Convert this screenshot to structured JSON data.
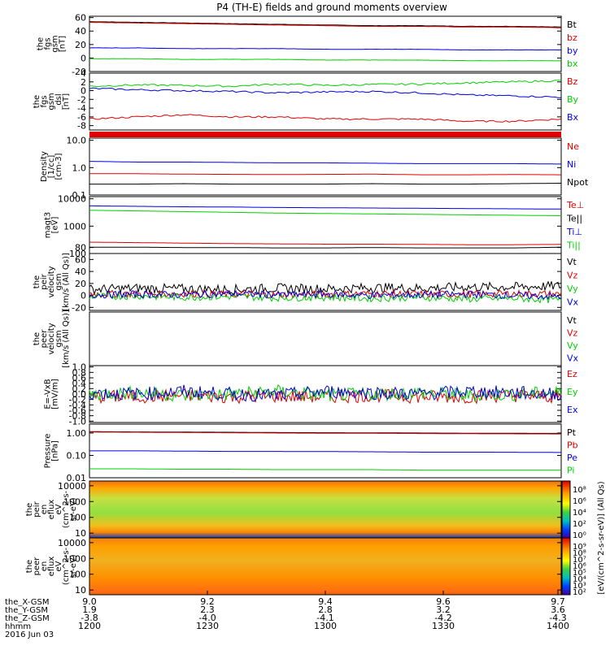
{
  "title": "P4 (TH-E) fields and ground moments overview",
  "colors": {
    "black": "#000000",
    "red": "#e00000",
    "green": "#00d000",
    "blue": "#0000e0"
  },
  "chart_data": [
    {
      "type": "line",
      "ylabel": [
        "the",
        "fgs",
        "gsm",
        "[nT]"
      ],
      "yticks": [
        "60",
        "40",
        "20",
        "0",
        "-20"
      ],
      "ylim": [
        -20,
        62
      ],
      "series": [
        {
          "name": "Bt",
          "color": "black",
          "values": [
            54,
            53,
            52,
            51,
            50,
            49,
            48,
            48,
            47,
            47,
            46
          ]
        },
        {
          "name": "bz",
          "color": "red",
          "values": [
            53,
            52,
            51,
            50,
            49,
            48,
            47,
            47,
            46,
            46,
            45
          ]
        },
        {
          "name": "by",
          "color": "blue",
          "values": [
            15,
            15,
            14,
            14,
            14,
            13,
            13,
            13,
            12,
            12,
            12
          ]
        },
        {
          "name": "bx",
          "color": "green",
          "values": [
            -1,
            -1,
            -2,
            -2,
            -2,
            -3,
            -3,
            -3,
            -4,
            -4,
            -4
          ]
        }
      ]
    },
    {
      "type": "line",
      "ylabel": [
        "the",
        "fgs",
        "gsm",
        "_dsl",
        "[nT]"
      ],
      "yticks": [
        "4",
        "2",
        "0",
        "-2",
        "-4",
        "-6",
        "-8"
      ],
      "ylim": [
        -9,
        4
      ],
      "series": [
        {
          "name": "Bz",
          "color": "red",
          "values": [
            -6.5,
            -6,
            -5.5,
            -6,
            -6,
            -6.5,
            -6.5,
            -6.5,
            -7,
            -7,
            -6.5
          ]
        },
        {
          "name": "By",
          "color": "green",
          "values": [
            1,
            1.3,
            1.2,
            1,
            1.5,
            1.2,
            1.4,
            1.5,
            1.8,
            2,
            2.3
          ]
        },
        {
          "name": "Bx",
          "color": "blue",
          "values": [
            0.5,
            0.2,
            0,
            -0.2,
            -0.5,
            -0.3,
            -0.2,
            -0.5,
            -1,
            -1.2,
            -1.5
          ]
        }
      ]
    },
    {
      "type": "line",
      "ylabel": [
        "Density",
        "[1/cc]",
        "[cm-3]"
      ],
      "yticks": [
        "10.0",
        "1.0",
        "0.1"
      ],
      "ylim": [
        0.1,
        12
      ],
      "log": true,
      "series": [
        {
          "name": "Ne",
          "color": "red",
          "values": [
            0.6,
            0.6,
            0.58,
            0.57,
            0.56,
            0.57,
            0.58,
            0.55,
            0.55,
            0.56,
            0.55
          ]
        },
        {
          "name": "Ni",
          "color": "blue",
          "values": [
            1.7,
            1.6,
            1.6,
            1.55,
            1.5,
            1.5,
            1.45,
            1.4,
            1.4,
            1.4,
            1.35
          ]
        },
        {
          "name": "Npot",
          "color": "black",
          "values": [
            0.25,
            0.25,
            0.26,
            0.25,
            0.25,
            0.25,
            0.26,
            0.25,
            0.25,
            0.26,
            0.27
          ]
        }
      ]
    },
    {
      "type": "line",
      "ylabel": [
        "magt3",
        "[eV]"
      ],
      "yticks": [
        "10000",
        "1000",
        "100"
      ],
      "ylim": [
        100,
        12000
      ],
      "log": true,
      "series": [
        {
          "name": "Te⊥",
          "color": "red",
          "values": [
            260,
            250,
            240,
            230,
            225,
            220,
            220,
            215,
            210,
            210,
            215
          ]
        },
        {
          "name": "Te||",
          "color": "black",
          "values": [
            170,
            170,
            165,
            165,
            160,
            160,
            165,
            160,
            160,
            160,
            170
          ]
        },
        {
          "name": "Ti⊥",
          "color": "blue",
          "values": [
            5500,
            5300,
            5100,
            5000,
            4800,
            4700,
            4600,
            4500,
            4400,
            4300,
            4200
          ]
        },
        {
          "name": "Ti||",
          "color": "green",
          "values": [
            3800,
            3600,
            3400,
            3200,
            3000,
            2900,
            2800,
            2700,
            2600,
            2500,
            2400
          ]
        }
      ]
    },
    {
      "type": "line",
      "ylabel": [
        "the",
        "peir",
        "velocity",
        "gsm",
        "[km/s (All Qs)]"
      ],
      "yticks": [
        "80",
        "60",
        "40",
        "20",
        "0",
        "-20"
      ],
      "ylim": [
        -25,
        70
      ],
      "series": [
        {
          "name": "Vt",
          "color": "black",
          "values": [
            10,
            12,
            11,
            10,
            12,
            11,
            13,
            12,
            14,
            14,
            16
          ]
        },
        {
          "name": "Vz",
          "color": "red",
          "values": [
            3,
            2,
            3,
            2,
            1,
            2,
            3,
            2,
            2,
            3,
            2
          ]
        },
        {
          "name": "Vy",
          "color": "green",
          "values": [
            -2,
            -1,
            -3,
            -2,
            -4,
            -3,
            -5,
            -3,
            -6,
            -5,
            -8
          ]
        },
        {
          "name": "Vx",
          "color": "blue",
          "values": [
            1,
            2,
            1,
            3,
            1,
            2,
            0,
            1,
            2,
            0,
            -2
          ]
        }
      ]
    },
    {
      "type": "line",
      "ylabel": [
        "the",
        "peer",
        "velocity",
        "gsm",
        "[km/s (All Qs)]"
      ],
      "yticks": [],
      "ylim": [
        0,
        1
      ],
      "series": [
        {
          "name": "Vt",
          "color": "black",
          "values": []
        },
        {
          "name": "Vz",
          "color": "red",
          "values": []
        },
        {
          "name": "Vy",
          "color": "green",
          "values": []
        },
        {
          "name": "Vx",
          "color": "blue",
          "values": []
        }
      ]
    },
    {
      "type": "line",
      "ylabel": [
        "E=-VxB",
        "[mV/m]"
      ],
      "yticks": [
        "1.0",
        "0.8",
        "0.6",
        "0.4",
        "0.2",
        "0.0",
        "-0.2",
        "-0.4",
        "-0.6",
        "-0.8",
        "-1.0"
      ],
      "ylim": [
        -1.05,
        1.05
      ],
      "series": [
        {
          "name": "Ez",
          "color": "red",
          "values": [
            -0.1,
            -0.1,
            -0.05,
            -0.1,
            -0.08,
            -0.1,
            -0.05,
            -0.1,
            -0.1,
            -0.05,
            -0.1
          ]
        },
        {
          "name": "Ey",
          "color": "green",
          "values": [
            0,
            0.05,
            -0.05,
            0,
            0.1,
            -0.05,
            0,
            0.05,
            -0.05,
            0,
            0.05
          ]
        },
        {
          "name": "Ex",
          "color": "blue",
          "values": [
            0.05,
            0,
            0.1,
            0,
            -0.05,
            0.1,
            0.05,
            0,
            0.1,
            0.05,
            0
          ]
        }
      ]
    },
    {
      "type": "line",
      "ylabel": [
        "Pressure",
        "[nPa]"
      ],
      "yticks": [
        "1.00",
        "0.10",
        "0.01"
      ],
      "ylim": [
        0.01,
        2.5
      ],
      "log": true,
      "series": [
        {
          "name": "Pt",
          "color": "black",
          "values": [
            1.15,
            1.12,
            1.1,
            1.08,
            1.05,
            1.03,
            1.02,
            1,
            0.98,
            0.97,
            0.96
          ]
        },
        {
          "name": "Pb",
          "color": "red",
          "values": [
            1.1,
            1.08,
            1.05,
            1.03,
            1.0,
            0.98,
            0.97,
            0.95,
            0.93,
            0.92,
            0.91
          ]
        },
        {
          "name": "Pe",
          "color": "blue",
          "values": [
            0.16,
            0.16,
            0.155,
            0.15,
            0.15,
            0.148,
            0.145,
            0.14,
            0.14,
            0.138,
            0.135
          ]
        },
        {
          "name": "Pi",
          "color": "green",
          "values": [
            0.025,
            0.025,
            0.024,
            0.024,
            0.023,
            0.023,
            0.023,
            0.022,
            0.022,
            0.022,
            0.022
          ]
        }
      ]
    },
    {
      "type": "heatmap",
      "ylabel": [
        "the",
        "peir",
        "en",
        "eflux",
        "eV",
        "(cm^2-s-",
        "sr-eV)"
      ],
      "yticks": [
        "10000",
        "1000",
        "100",
        "10"
      ],
      "ylim": [
        5,
        20000
      ],
      "log": true,
      "zlabel": "[eV/(cm^2-s-sr-eV)] (All Qs)",
      "zticks": [
        "10⁸",
        "10⁶",
        "10⁴",
        "10²",
        "10⁰"
      ]
    },
    {
      "type": "heatmap",
      "ylabel": [
        "the",
        "peer",
        "en",
        "eflux",
        "eV",
        "(cm^2-s-",
        "sr-eV)"
      ],
      "yticks": [
        "10000",
        "1000",
        "100",
        "10"
      ],
      "ylim": [
        5,
        20000
      ],
      "log": true,
      "zlabel": "[eV/(cm^2-s-sr-eV)] (All Qs)",
      "zticks": [
        "10⁹",
        "10⁸",
        "10⁷",
        "10⁶",
        "10⁵",
        "10⁴",
        "10³",
        "10²"
      ]
    }
  ],
  "xaxis": {
    "row_labels": [
      "the_X-GSM",
      "the_Y-GSM",
      "the_Z-GSM",
      "hhmm",
      "2016 Jun 03"
    ],
    "ticks": [
      [
        "9.0",
        "1.9",
        "-3.8",
        "1200"
      ],
      [
        "9.2",
        "2.3",
        "-4.0",
        "1230"
      ],
      [
        "9.4",
        "2.8",
        "-4.1",
        "1300"
      ],
      [
        "9.6",
        "3.2",
        "-4.2",
        "1330"
      ],
      [
        "9.7",
        "3.6",
        "-4.3",
        "1400"
      ]
    ]
  }
}
